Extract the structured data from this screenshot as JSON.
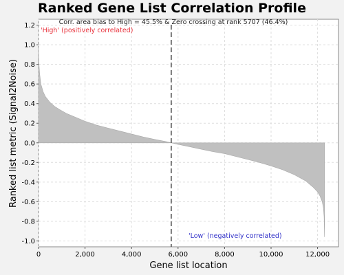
{
  "chart_data": {
    "type": "area",
    "title": "Ranked Gene List Correlation Profile",
    "xlabel": "Gene list location",
    "ylabel": "Ranked list metric (Signal2Noise)",
    "xlim": [
      0,
      12900
    ],
    "ylim": [
      -1.06,
      1.26
    ],
    "x_ticks": [
      0,
      2000,
      4000,
      6000,
      8000,
      10000,
      12000
    ],
    "x_tick_labels": [
      "0",
      "2,000",
      "4,000",
      "6,000",
      "8,000",
      "10,000",
      "12,000"
    ],
    "y_ticks": [
      1.2,
      1.0,
      0.8,
      0.6,
      0.4,
      0.2,
      0.0,
      -0.2,
      -0.4,
      -0.6,
      -0.8,
      -1.0
    ],
    "y_tick_labels": [
      "1.2",
      "1.0",
      "0.8",
      "0.6",
      "0.4",
      "0.2",
      "0.0",
      "-0.2",
      "-0.4",
      "-0.6",
      "-0.8",
      "-1.0"
    ],
    "grid": true,
    "series": [
      {
        "color": "#c0c0c0",
        "x": [
          0,
          20,
          50,
          100,
          200,
          300,
          400,
          500,
          700,
          900,
          1200,
          1500,
          2000,
          2500,
          3000,
          3500,
          4000,
          4500,
          5000,
          5500,
          5707,
          6000,
          6500,
          7000,
          7500,
          8000,
          8500,
          9000,
          9500,
          10000,
          10500,
          11000,
          11500,
          11800,
          12000,
          12100,
          12200,
          12250,
          12280,
          12300
        ],
        "y": [
          0.98,
          0.8,
          0.7,
          0.6,
          0.52,
          0.47,
          0.44,
          0.41,
          0.37,
          0.34,
          0.3,
          0.27,
          0.22,
          0.18,
          0.15,
          0.12,
          0.09,
          0.06,
          0.035,
          0.012,
          0.0,
          -0.015,
          -0.04,
          -0.065,
          -0.09,
          -0.11,
          -0.14,
          -0.17,
          -0.2,
          -0.235,
          -0.275,
          -0.325,
          -0.39,
          -0.45,
          -0.5,
          -0.54,
          -0.6,
          -0.66,
          -0.75,
          -0.96
        ]
      }
    ],
    "zero_crossing_rank": 5707,
    "annotations": {
      "summary": "Corr. area bias to High = 45.5% & Zero crossing at rank 5707 (46.4%)",
      "high_label": "'High' (positively correlated)",
      "low_label": "'Low' (negatively correlated)",
      "high_color": "#e8303a",
      "low_color": "#3030c8"
    }
  }
}
